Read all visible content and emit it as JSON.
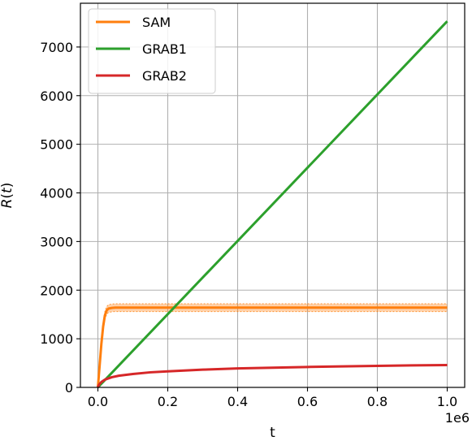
{
  "chart_data": {
    "type": "line",
    "xlabel": "t",
    "ylabel": "R(t)",
    "x_offset_label": "1e6",
    "xlim": [
      -0.05,
      1.05
    ],
    "ylim": [
      0,
      7900
    ],
    "xticks": [
      0.0,
      0.2,
      0.4,
      0.6,
      0.8,
      1.0
    ],
    "xtick_labels": [
      "0.0",
      "0.2",
      "0.4",
      "0.6",
      "0.8",
      "1.0"
    ],
    "yticks": [
      0,
      1000,
      2000,
      3000,
      4000,
      5000,
      6000,
      7000
    ],
    "ytick_labels": [
      "0",
      "1000",
      "2000",
      "3000",
      "4000",
      "5000",
      "6000",
      "7000"
    ],
    "grid": true,
    "legend_position": "top-left",
    "series": [
      {
        "name": "SAM",
        "color": "#ff7f0e",
        "x": [
          0,
          0.005,
          0.01,
          0.015,
          0.02,
          0.025,
          0.03,
          0.04,
          0.05,
          0.06,
          0.08,
          0.1,
          0.2,
          0.4,
          0.6,
          0.8,
          1.0
        ],
        "y": [
          0,
          450,
          900,
          1250,
          1480,
          1580,
          1620,
          1635,
          1640,
          1640,
          1640,
          1640,
          1640,
          1640,
          1640,
          1640,
          1640
        ],
        "band": 80
      },
      {
        "name": "GRAB1",
        "color": "#2ca02c",
        "x": [
          0,
          1.0
        ],
        "y": [
          0,
          7530
        ]
      },
      {
        "name": "GRAB2",
        "color": "#d62728",
        "x": [
          0,
          0.002,
          0.005,
          0.01,
          0.02,
          0.04,
          0.06,
          0.1,
          0.15,
          0.2,
          0.3,
          0.4,
          0.5,
          0.6,
          0.7,
          0.8,
          0.9,
          1.0
        ],
        "y": [
          0,
          40,
          70,
          110,
          160,
          210,
          240,
          275,
          310,
          330,
          365,
          390,
          405,
          420,
          432,
          443,
          452,
          460
        ]
      }
    ]
  }
}
